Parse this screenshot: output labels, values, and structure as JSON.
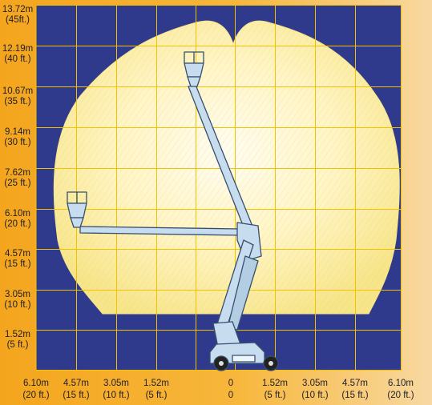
{
  "title": "",
  "colors": {
    "background": "#f4a51d",
    "grid_background": "#2f3a8c",
    "grid_lines": "#f2c200",
    "envelope_fill": "#fff3b8",
    "boom": "#c7dcef",
    "boom_outline": "#35506e"
  },
  "y_labels": [
    {
      "m": "13.72m",
      "ft": "(45ft.)"
    },
    {
      "m": "12.19m",
      "ft": "(40 ft.)"
    },
    {
      "m": "10.67m",
      "ft": "(35 ft.)"
    },
    {
      "m": "9.14m",
      "ft": "(30 ft.)"
    },
    {
      "m": "7.62m",
      "ft": "(25 ft.)"
    },
    {
      "m": "6.10m",
      "ft": "(20 ft.)"
    },
    {
      "m": "4.57m",
      "ft": "(15 ft.)"
    },
    {
      "m": "3.05m",
      "ft": "(10 ft.)"
    },
    {
      "m": "1.52m",
      "ft": "(5 ft.)"
    }
  ],
  "x_labels": [
    {
      "m": "6.10m",
      "ft": "(20 ft.)"
    },
    {
      "m": "4.57m",
      "ft": "(15 ft.)"
    },
    {
      "m": "3.05m",
      "ft": "(10 ft.)"
    },
    {
      "m": "1.52m",
      "ft": "(5 ft.)"
    },
    {
      "m": "0",
      "ft": "0"
    },
    {
      "m": "1.52m",
      "ft": "(5 ft.)"
    },
    {
      "m": "3.05m",
      "ft": "(10 ft.)"
    },
    {
      "m": "4.57m",
      "ft": "(15 ft.)"
    },
    {
      "m": "6.10m",
      "ft": "(20 ft.)"
    }
  ]
}
